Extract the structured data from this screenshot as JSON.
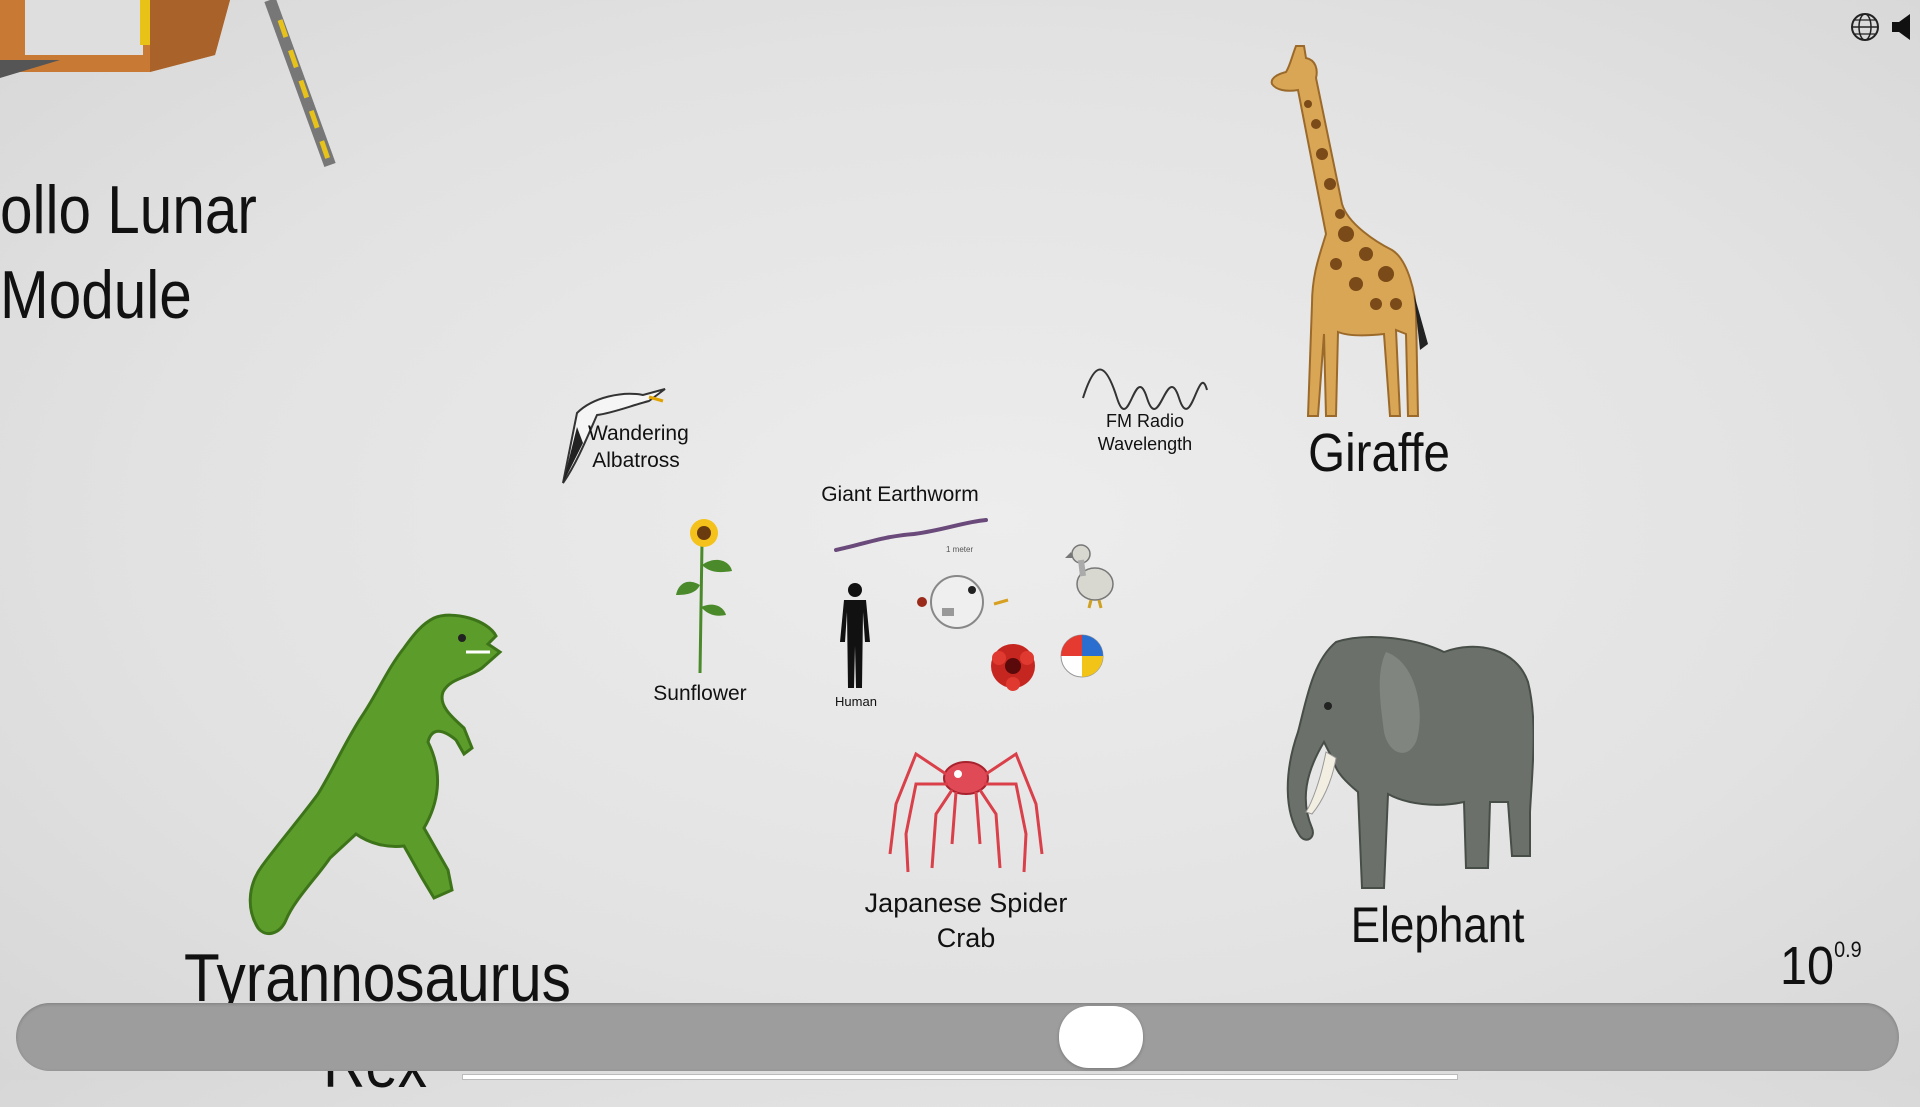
{
  "top_bar": {
    "globe_icon": "globe-icon",
    "speaker_icon": "speaker-icon"
  },
  "objects": {
    "apollo": "ollo Lunar\nModule",
    "trex_line1": "Tyrannosaurus",
    "trex_line2": "Rex",
    "albatross": "Wandering\nAlbatross",
    "sunflower": "Sunflower",
    "earthworm": "Giant Earthworm",
    "human": "Human",
    "fm_radio": "FM Radio\nWavelength",
    "giraffe": "Giraffe",
    "elephant": "Elephant",
    "spider_crab": "Japanese Spider\nCrab"
  },
  "scale": {
    "base": "10",
    "exponent": "0.9",
    "exponent_value": 0.9
  },
  "slider": {
    "position_fraction": 0.56
  },
  "colors": {
    "background": "#e4e4e4",
    "slider_track": "#9d9d9d",
    "slider_thumb": "#ffffff",
    "trex_green": "#5a9a2a",
    "giraffe_tan": "#d9a656",
    "elephant_gray": "#6c716b",
    "crab_red": "#d9404a"
  }
}
